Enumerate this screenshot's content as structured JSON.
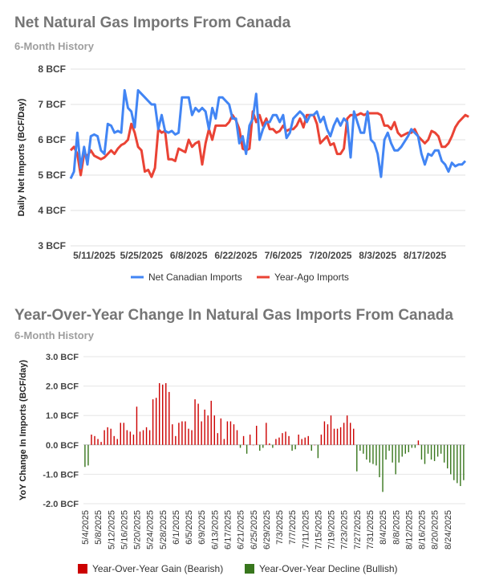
{
  "chart_data": [
    {
      "type": "line",
      "title": "Net Natural Gas Imports From Canada",
      "subtitle": "6-Month History",
      "ylabel": "Daily Net Imports (BCF/Day)",
      "ylim": [
        3,
        8
      ],
      "y_ticks": [
        3,
        4,
        5,
        6,
        7,
        8
      ],
      "y_tick_labels": [
        "3 BCF",
        "4 BCF",
        "5 BCF",
        "6 BCF",
        "7 BCF",
        "8 BCF"
      ],
      "x_tick_labels": [
        "5/11/2025",
        "5/25/2025",
        "6/8/2025",
        "6/22/2025",
        "7/6/2025",
        "7/20/2025",
        "8/3/2025",
        "8/17/2025"
      ],
      "x_tick_days": [
        7,
        21,
        35,
        49,
        63,
        77,
        91,
        105
      ],
      "legend_position": "bottom",
      "grid": true,
      "series": [
        {
          "name": "Net Canadian Imports",
          "color": "#4285f4",
          "values": [
            4.9,
            5.1,
            6.2,
            5.2,
            5.8,
            5.3,
            6.1,
            6.15,
            6.1,
            5.7,
            5.6,
            6.45,
            6.4,
            6.2,
            6.25,
            6.2,
            7.4,
            6.9,
            6.8,
            6.35,
            7.4,
            7.3,
            7.2,
            7.1,
            7.0,
            7.0,
            6.3,
            6.7,
            6.25,
            6.2,
            6.25,
            6.15,
            6.2,
            7.2,
            7.2,
            7.2,
            6.7,
            6.9,
            6.8,
            6.9,
            6.8,
            6.3,
            6.9,
            6.6,
            7.2,
            7.2,
            7.1,
            7.0,
            6.6,
            6.6,
            5.9,
            6.1,
            5.6,
            6.4,
            6.6,
            7.3,
            6.0,
            6.3,
            6.5,
            6.5,
            6.7,
            6.7,
            6.5,
            6.7,
            6.05,
            6.2,
            6.6,
            6.7,
            6.8,
            6.7,
            6.5,
            6.7,
            6.7,
            6.8,
            6.5,
            6.65,
            6.3,
            6.1,
            6.4,
            6.6,
            6.4,
            6.6,
            6.5,
            5.5,
            6.8,
            6.5,
            6.2,
            6.2,
            6.8,
            6.0,
            5.9,
            5.6,
            4.95,
            6.0,
            6.2,
            5.9,
            5.7,
            5.7,
            5.8,
            5.95,
            6.1,
            6.3,
            6.2,
            6.1,
            5.6,
            5.3,
            5.6,
            5.55,
            5.7,
            5.7,
            5.4,
            5.3,
            5.1,
            5.35,
            5.25,
            5.3,
            5.3,
            5.4
          ]
        },
        {
          "name": "Year-Ago Imports",
          "color": "#ea4335",
          "values": [
            5.7,
            5.8,
            5.6,
            5.0,
            5.6,
            5.55,
            5.7,
            5.55,
            5.5,
            5.45,
            5.5,
            5.6,
            5.7,
            5.6,
            5.75,
            5.85,
            5.9,
            6.0,
            6.45,
            6.2,
            5.8,
            5.7,
            5.1,
            5.15,
            4.95,
            5.2,
            6.3,
            6.2,
            6.25,
            5.45,
            5.45,
            5.4,
            5.75,
            5.7,
            5.65,
            6.0,
            5.8,
            5.9,
            5.95,
            5.3,
            5.9,
            6.3,
            6.0,
            6.4,
            6.4,
            6.4,
            6.4,
            6.5,
            6.7,
            6.55,
            6.3,
            5.75,
            5.7,
            5.75,
            6.8,
            6.5,
            6.7,
            6.4,
            6.6,
            6.3,
            6.3,
            6.2,
            6.25,
            6.4,
            6.25,
            6.3,
            6.3,
            6.4,
            6.6,
            6.35,
            6.7,
            6.7,
            6.7,
            6.45,
            5.9,
            6.0,
            6.1,
            5.85,
            5.9,
            5.6,
            5.6,
            5.75,
            6.6,
            6.7,
            6.7,
            6.7,
            6.75,
            6.7,
            6.75,
            6.75,
            6.75,
            6.75,
            6.7,
            6.4,
            6.4,
            6.3,
            6.5,
            6.2,
            6.1,
            6.15,
            6.2,
            6.2,
            6.3,
            6.1,
            6.0,
            5.9,
            6.0,
            6.25,
            6.2,
            6.1,
            5.8,
            5.8,
            5.9,
            6.1,
            6.35,
            6.5,
            6.6,
            6.7,
            6.65
          ]
        }
      ]
    },
    {
      "type": "bar",
      "title": "Year-Over-Year Change In Natural Gas Imports From Canada",
      "subtitle": "6-Month History",
      "ylabel": "YoY Change In Imports (BCF/day)",
      "ylim": [
        -2,
        3
      ],
      "y_ticks": [
        -2,
        -1,
        0,
        1,
        2,
        3
      ],
      "y_tick_labels": [
        "-2.0 BCF",
        "-1.0 BCF",
        "0.0 BCF",
        "1.0 BCF",
        "2.0 BCF",
        "3.0 BCF"
      ],
      "x_tick_labels": [
        "5/4/2025",
        "5/8/2025",
        "5/12/2025",
        "5/16/2025",
        "5/20/2025",
        "5/24/2025",
        "5/28/2025",
        "6/1/2025",
        "6/5/2025",
        "6/9/2025",
        "6/13/2025",
        "6/17/2025",
        "6/21/2025",
        "6/25/2025",
        "6/29/2025",
        "7/3/2025",
        "7/7/2025",
        "7/11/2025",
        "7/15/2025",
        "7/19/2025",
        "7/23/2025",
        "7/27/2025",
        "7/31/2025",
        "8/4/2025",
        "8/8/2025",
        "8/12/2025",
        "8/16/2025",
        "8/20/2025",
        "8/24/2025"
      ],
      "legend_position": "bottom",
      "grid": true,
      "series": [
        {
          "name": "Year-Over-Year Gain (Bearish)",
          "color": "#cc0000"
        },
        {
          "name": "Year-Over-Year Decline (Bullish)",
          "color": "#38761d"
        }
      ],
      "values": [
        -0.75,
        -0.7,
        0.35,
        0.3,
        0.2,
        0.1,
        0.5,
        0.6,
        0.55,
        0.3,
        0.2,
        0.75,
        0.75,
        0.5,
        0.45,
        0.35,
        1.3,
        0.45,
        0.5,
        0.6,
        0.5,
        1.55,
        1.6,
        2.1,
        2.05,
        2.1,
        1.8,
        0.7,
        0.3,
        0.75,
        0.8,
        0.8,
        0.55,
        0.5,
        1.55,
        1.4,
        0.8,
        1.2,
        1.0,
        1.5,
        1.0,
        0.4,
        0.9,
        0.2,
        0.8,
        0.8,
        0.7,
        0.5,
        -0.1,
        0.3,
        -0.3,
        0.35,
        0.0,
        0.65,
        -0.2,
        -0.1,
        0.75,
        0.05,
        -0.1,
        0.2,
        0.25,
        0.4,
        0.45,
        0.3,
        -0.2,
        -0.15,
        0.35,
        0.2,
        0.25,
        0.3,
        -0.2,
        0.0,
        -0.45,
        0.35,
        0.8,
        0.7,
        1.0,
        0.55,
        0.55,
        0.6,
        0.75,
        1.0,
        0.75,
        0.55,
        -0.9,
        -0.2,
        -0.3,
        -0.5,
        -0.6,
        -0.65,
        -0.7,
        -1.1,
        -1.6,
        -0.5,
        -0.2,
        -0.6,
        -1.0,
        -0.6,
        -0.4,
        -0.3,
        -0.25,
        -0.1,
        -0.1,
        0.15,
        -0.5,
        -0.65,
        -0.3,
        -0.5,
        -0.55,
        -0.4,
        -0.3,
        -0.6,
        -0.8,
        -1.0,
        -1.2,
        -1.3,
        -1.4,
        -1.2
      ]
    }
  ]
}
